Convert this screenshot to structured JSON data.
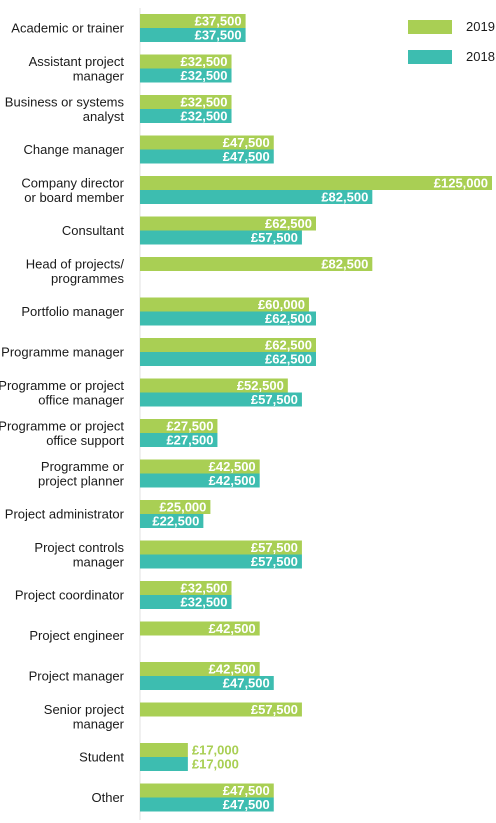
{
  "chart_data": {
    "type": "bar",
    "orientation": "horizontal",
    "title": "",
    "xlabel": "",
    "ylabel": "",
    "xlim": [
      0,
      125000
    ],
    "grid": false,
    "legend_position": "top-right",
    "categories": [
      "Academic or trainer",
      "Assistant project manager",
      "Business or systems analyst",
      "Change manager",
      "Company director or board member",
      "Consultant",
      "Head of projects/ programmes",
      "Portfolio manager",
      "Programme manager",
      "Programme or project office manager",
      "Programme or project office support",
      "Programme or project planner",
      "Project administrator",
      "Project controls manager",
      "Project coordinator",
      "Project engineer",
      "Project manager",
      "Senior project manager",
      "Student",
      "Other"
    ],
    "category_lines": [
      [
        "Academic or trainer"
      ],
      [
        "Assistant project",
        "manager"
      ],
      [
        "Business or systems",
        "analyst"
      ],
      [
        "Change manager"
      ],
      [
        "Company director",
        "or board member"
      ],
      [
        "Consultant"
      ],
      [
        "Head of projects/",
        "programmes"
      ],
      [
        "Portfolio manager"
      ],
      [
        "Programme manager"
      ],
      [
        "Programme or project",
        "office manager"
      ],
      [
        "Programme or project",
        "office support"
      ],
      [
        "Programme or",
        "project planner"
      ],
      [
        "Project administrator"
      ],
      [
        "Project controls",
        "manager"
      ],
      [
        "Project coordinator"
      ],
      [
        "Project engineer"
      ],
      [
        "Project manager"
      ],
      [
        "Senior project",
        "manager"
      ],
      [
        "Student"
      ],
      [
        "Other"
      ]
    ],
    "series": [
      {
        "name": "2019",
        "color": "#a9cf54",
        "values": [
          37500,
          32500,
          32500,
          47500,
          125000,
          62500,
          82500,
          60000,
          62500,
          52500,
          27500,
          42500,
          25000,
          57500,
          32500,
          42500,
          42500,
          57500,
          17000,
          47500
        ],
        "labels": [
          "£37,500",
          "£32,500",
          "£32,500",
          "£47,500",
          "£125,000",
          "£62,500",
          "£82,500",
          "£60,000",
          "£62,500",
          "£52,500",
          "£27,500",
          "£42,500",
          "£25,000",
          "£57,500",
          "£32,500",
          "£42,500",
          "£42,500",
          "£57,500",
          "£17,000",
          "£47,500"
        ]
      },
      {
        "name": "2018",
        "color": "#3dbdb0",
        "values": [
          37500,
          32500,
          32500,
          47500,
          82500,
          57500,
          null,
          62500,
          62500,
          57500,
          27500,
          42500,
          22500,
          57500,
          32500,
          null,
          47500,
          null,
          17000,
          47500
        ],
        "labels": [
          "£37,500",
          "£32,500",
          "£32,500",
          "£47,500",
          "£82,500",
          "£57,500",
          null,
          "£62,500",
          "£62,500",
          "£57,500",
          "£27,500",
          "£42,500",
          "£22,500",
          "£57,500",
          "£32,500",
          null,
          "£47,500",
          null,
          "£17,000",
          "£47,500"
        ]
      }
    ],
    "label_color_outside": "#a9cf54"
  }
}
